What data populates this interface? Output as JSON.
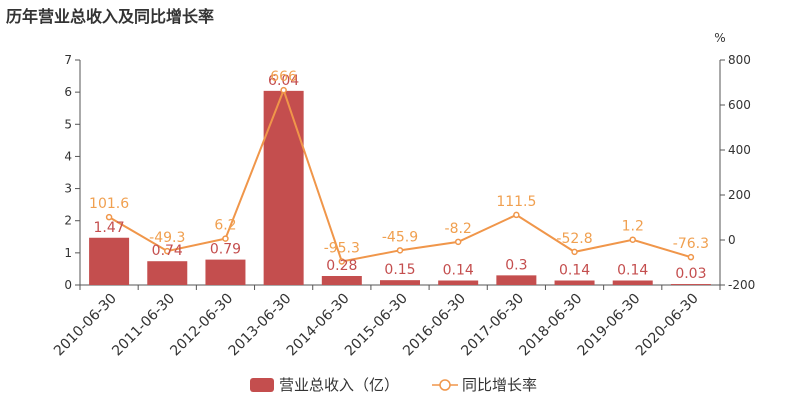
{
  "title": "历年营业总收入及同比增长率",
  "colors": {
    "bar": "#c44e4e",
    "line": "#f0964a",
    "axis": "#555555",
    "text": "#333333"
  },
  "chart_data": {
    "type": "bar",
    "title": "历年营业总收入及同比增长率",
    "categories": [
      "2010-06-30",
      "2011-06-30",
      "2012-06-30",
      "2013-06-30",
      "2014-06-30",
      "2015-06-30",
      "2016-06-30",
      "2017-06-30",
      "2018-06-30",
      "2019-06-30",
      "2020-06-30"
    ],
    "series": [
      {
        "name": "营业总收入（亿）",
        "type": "bar",
        "axis": "left",
        "values": [
          1.47,
          0.74,
          0.79,
          6.04,
          0.28,
          0.15,
          0.14,
          0.3,
          0.14,
          0.14,
          0.03
        ],
        "labels": [
          "1.47",
          "0.74",
          "0.79",
          "6.04",
          "0.28",
          "0.15",
          "0.14",
          "0.3",
          "0.14",
          "0.14",
          "0.03"
        ]
      },
      {
        "name": "同比增长率",
        "type": "line",
        "axis": "right",
        "values": [
          101.6,
          -49.3,
          6.2,
          666,
          -95.3,
          -45.9,
          -8.2,
          111.5,
          -52.8,
          1.2,
          -76.3
        ],
        "labels": [
          "101.6",
          "-49.3",
          "6.2",
          "666",
          "-95.3",
          "-45.9",
          "-8.2",
          "111.5",
          "-52.8",
          "1.2",
          "-76.3"
        ]
      }
    ],
    "y_left": {
      "ylim": [
        0,
        7
      ],
      "ticks": [
        "0",
        "1",
        "2",
        "3",
        "4",
        "5",
        "6",
        "7"
      ]
    },
    "y_right": {
      "ylim": [
        -200,
        800
      ],
      "ticks": [
        "-200",
        "0",
        "200",
        "400",
        "600",
        "800"
      ],
      "unit": "%"
    },
    "grid": false,
    "legend": "bottom-center"
  }
}
